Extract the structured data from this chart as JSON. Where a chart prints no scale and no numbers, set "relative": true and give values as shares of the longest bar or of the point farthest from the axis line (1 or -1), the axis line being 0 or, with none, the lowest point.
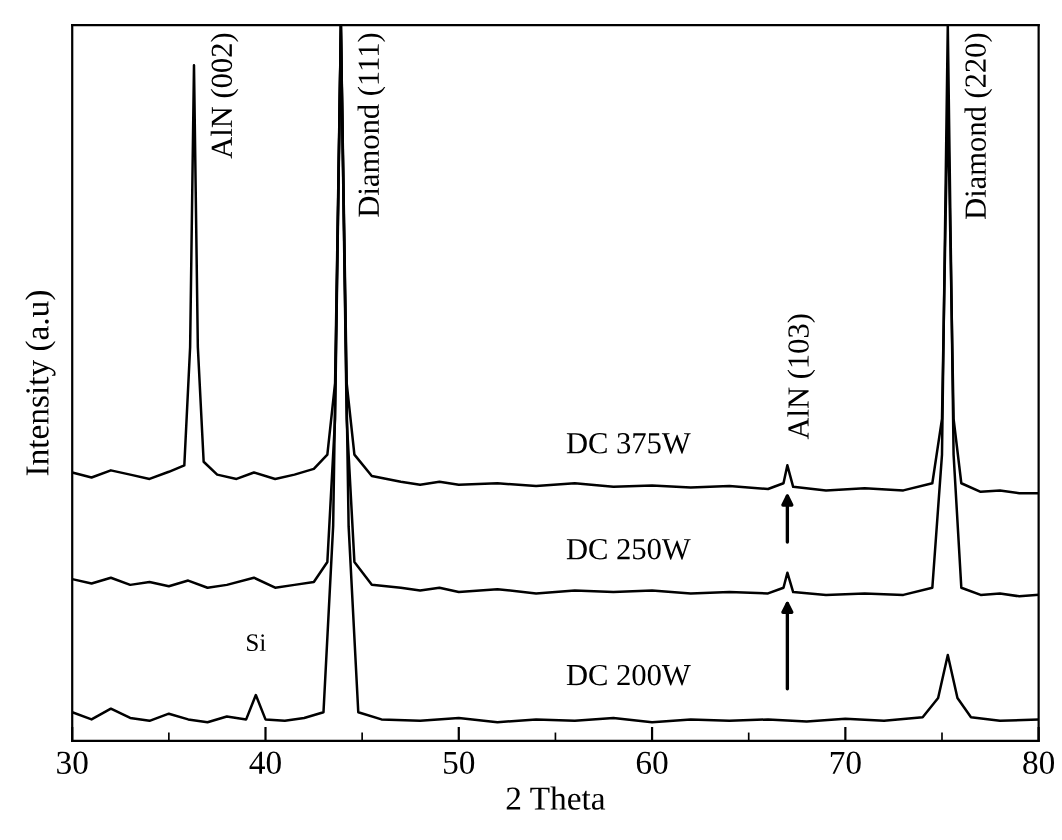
{
  "chart_data": {
    "type": "line",
    "relative": true,
    "xlabel": "2 Theta",
    "ylabel": "Intensity (a.u)",
    "xlim": [
      30,
      80
    ],
    "xticks": [
      30,
      40,
      50,
      60,
      70,
      80
    ],
    "tick_labels": "x",
    "grid": false,
    "marker": "none",
    "line_style": "solid",
    "series": [
      {
        "name": "DC 375W",
        "color": "#000000",
        "x": [
          30,
          31,
          32,
          33,
          34,
          35,
          35.8,
          36.1,
          36.3,
          36.5,
          36.8,
          37.5,
          38.5,
          39.4,
          40.5,
          41.5,
          42.5,
          43.2,
          43.6,
          43.9,
          44.2,
          44.6,
          45.5,
          47,
          48,
          49,
          50,
          52,
          54,
          56,
          58,
          60,
          62,
          64,
          66,
          66.8,
          67,
          67.3,
          69,
          71,
          73,
          74.5,
          75,
          75.3,
          75.6,
          76,
          77,
          78,
          79,
          80
        ],
        "values": [
          0.375,
          0.368,
          0.378,
          0.372,
          0.366,
          0.376,
          0.385,
          0.55,
          0.944,
          0.55,
          0.39,
          0.372,
          0.366,
          0.375,
          0.366,
          0.372,
          0.38,
          0.4,
          0.5,
          1.0,
          0.5,
          0.4,
          0.37,
          0.362,
          0.358,
          0.362,
          0.358,
          0.36,
          0.356,
          0.36,
          0.355,
          0.357,
          0.354,
          0.356,
          0.352,
          0.36,
          0.385,
          0.355,
          0.35,
          0.353,
          0.35,
          0.36,
          0.45,
          0.9,
          0.45,
          0.36,
          0.348,
          0.35,
          0.346,
          0.346
        ]
      },
      {
        "name": "DC 250W",
        "color": "#000000",
        "x": [
          30,
          31,
          32,
          33,
          34,
          35,
          36,
          37,
          38,
          39.4,
          40.5,
          41.5,
          42.5,
          43.2,
          43.6,
          43.9,
          44.2,
          44.6,
          45.5,
          47,
          48,
          49,
          50,
          52,
          54,
          56,
          58,
          60,
          62,
          64,
          66,
          66.8,
          67,
          67.3,
          69,
          71,
          73,
          74.5,
          75,
          75.3,
          75.6,
          76,
          77,
          78,
          79,
          80
        ],
        "values": [
          0.226,
          0.22,
          0.228,
          0.218,
          0.222,
          0.216,
          0.224,
          0.214,
          0.218,
          0.228,
          0.214,
          0.218,
          0.222,
          0.25,
          0.45,
          1.0,
          0.45,
          0.25,
          0.218,
          0.214,
          0.21,
          0.214,
          0.208,
          0.212,
          0.206,
          0.21,
          0.208,
          0.21,
          0.206,
          0.208,
          0.206,
          0.214,
          0.235,
          0.208,
          0.204,
          0.206,
          0.204,
          0.214,
          0.4,
          1.0,
          0.4,
          0.214,
          0.204,
          0.206,
          0.202,
          0.204
        ]
      },
      {
        "name": "DC 200W",
        "color": "#000000",
        "x": [
          30,
          31,
          32,
          33,
          34,
          35,
          36,
          37,
          38,
          39,
          39.5,
          40,
          41,
          42,
          43,
          43.5,
          43.9,
          44.3,
          44.8,
          46,
          48,
          50,
          52,
          54,
          56,
          58,
          60,
          62,
          64,
          66,
          68,
          70,
          72,
          74,
          74.8,
          75.3,
          75.8,
          76.5,
          78,
          80
        ],
        "values": [
          0.04,
          0.03,
          0.045,
          0.032,
          0.028,
          0.038,
          0.03,
          0.026,
          0.034,
          0.03,
          0.064,
          0.03,
          0.028,
          0.032,
          0.04,
          0.3,
          1.0,
          0.3,
          0.04,
          0.03,
          0.028,
          0.032,
          0.026,
          0.03,
          0.028,
          0.032,
          0.026,
          0.03,
          0.028,
          0.03,
          0.027,
          0.031,
          0.028,
          0.033,
          0.06,
          0.12,
          0.06,
          0.033,
          0.028,
          0.03
        ]
      }
    ],
    "annotations": [
      {
        "text": "AlN (002)",
        "x": 36.3,
        "y": 0.944
      },
      {
        "text": "Diamond (111)",
        "x": 43.9,
        "y": 1.0
      },
      {
        "text": "Diamond (220)",
        "x": 75.3,
        "y": 1.0
      },
      {
        "text": "AlN (103)",
        "x": 67,
        "y": 0.39
      },
      {
        "text": "Si",
        "x": 39.5,
        "y": 0.064
      }
    ]
  }
}
